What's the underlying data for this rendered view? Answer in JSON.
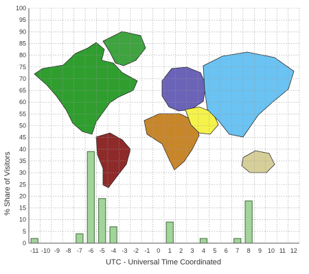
{
  "chart_data": {
    "type": "bar",
    "xlabel": "UTC - Universal Time Coordinated",
    "ylabel": "% Share of Visitors",
    "categories": [
      "-11",
      "-10",
      "-9",
      "-8",
      "-7",
      "-6",
      "-5",
      "-4",
      "-3",
      "-2",
      "-1",
      "0",
      "1",
      "2",
      "3",
      "4",
      "5",
      "6",
      "7",
      "8",
      "9",
      "10",
      "11",
      "12"
    ],
    "values": [
      2,
      0,
      0,
      0,
      4,
      39,
      19,
      7,
      0,
      0,
      0,
      0,
      9,
      0,
      0,
      2,
      0,
      0,
      2,
      18,
      0,
      0,
      0,
      0
    ],
    "ylim": [
      0,
      100
    ],
    "yticks": [
      0,
      5,
      10,
      15,
      20,
      25,
      30,
      35,
      40,
      45,
      50,
      55,
      60,
      65,
      70,
      75,
      80,
      85,
      90,
      95,
      100
    ],
    "grid": true,
    "background": "world-map",
    "colors": {
      "bar_fill": "#a3d49b",
      "bar_stroke": "#3d6b38",
      "axis": "#555555",
      "north_america": "#2f9e2f",
      "greenland": "#3fa33f",
      "south_america": "#8e2a2a",
      "europe": "#6a63b8",
      "africa": "#c8862b",
      "middle_east": "#f5f24a",
      "asia": "#6ac3f2",
      "australia": "#d6cf99"
    }
  }
}
